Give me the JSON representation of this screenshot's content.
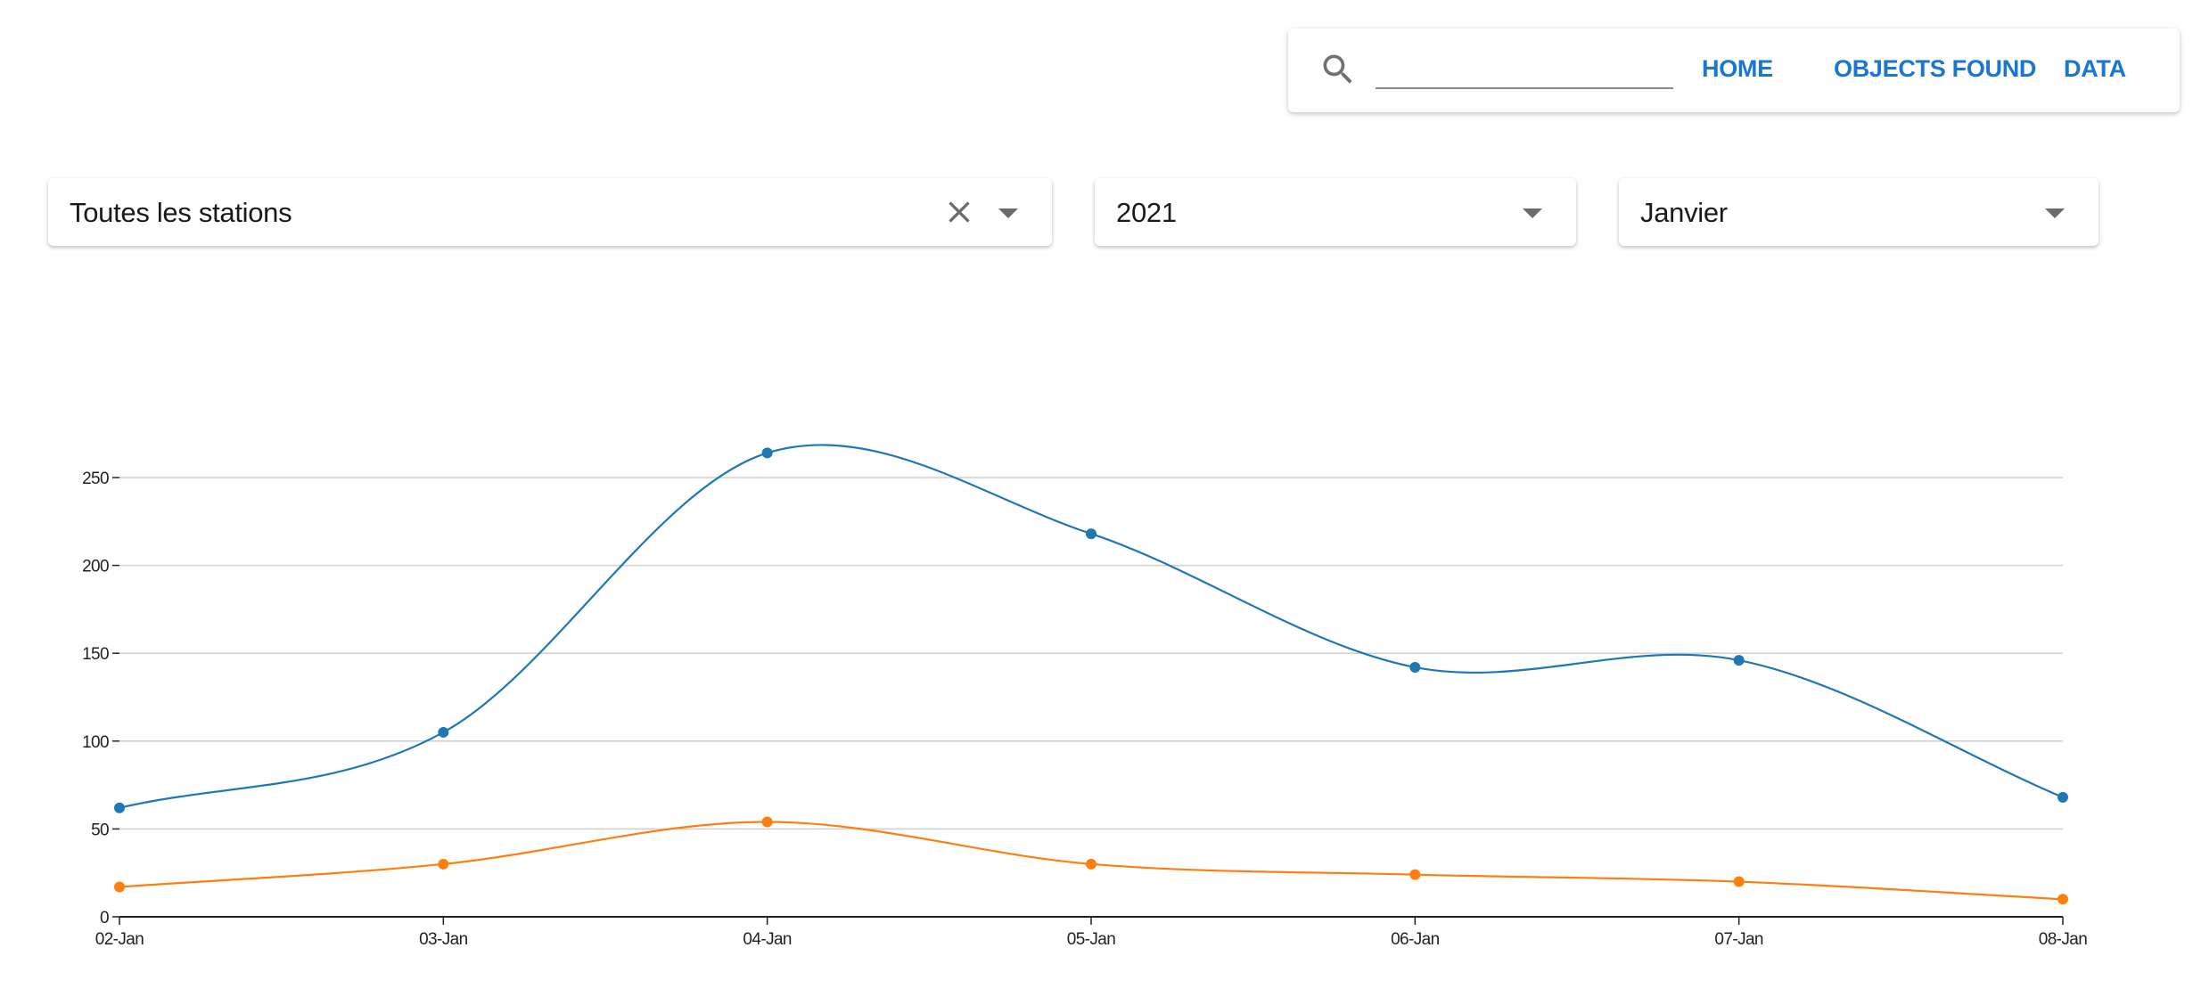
{
  "nav": {
    "search": {
      "value": "",
      "placeholder": ""
    },
    "links": [
      "HOME",
      "OBJECTS FOUND",
      "DATA"
    ],
    "link_color": "#1976d2"
  },
  "filters": {
    "station": {
      "value": "Toutes les stations",
      "clearable": true
    },
    "year": {
      "value": "2021"
    },
    "month": {
      "value": "Janvier"
    }
  },
  "chart_data": {
    "type": "line",
    "categories": [
      "02-Jan",
      "03-Jan",
      "04-Jan",
      "05-Jan",
      "06-Jan",
      "07-Jan",
      "08-Jan"
    ],
    "series": [
      {
        "values": [
          62,
          105,
          264,
          218,
          142,
          146,
          68
        ],
        "color": "#1f77b4"
      },
      {
        "values": [
          17,
          30,
          54,
          30,
          24,
          20,
          10
        ],
        "color": "#ff7f0e"
      }
    ],
    "yticks": [
      0,
      50,
      100,
      150,
      200,
      250
    ],
    "ylim": [
      0,
      250
    ],
    "grid": true,
    "curve": "smooth",
    "markers": true,
    "legend": "none"
  }
}
